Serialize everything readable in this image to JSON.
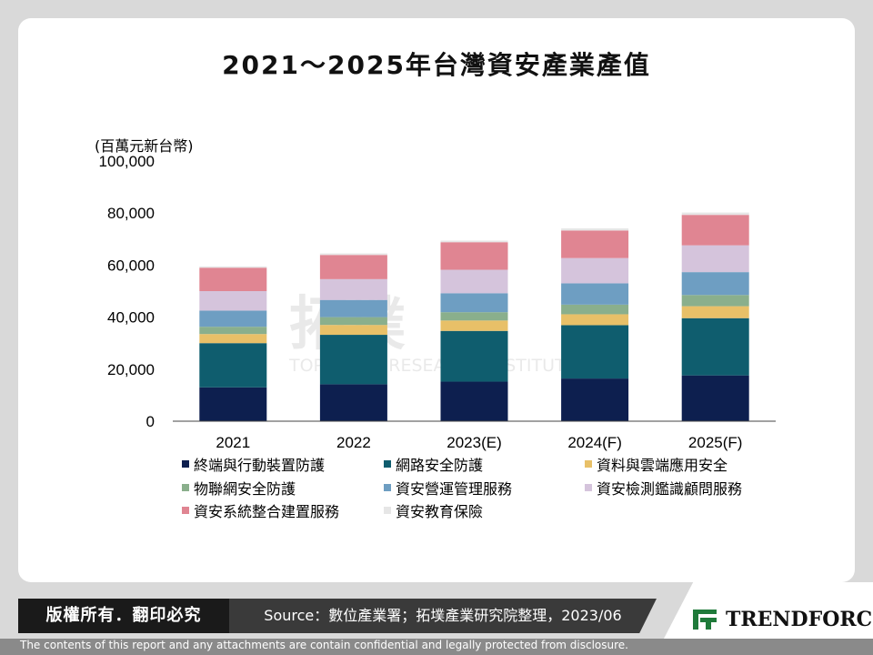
{
  "header": {
    "title": "2021～2025年台灣資安產業產值"
  },
  "chart_data": {
    "type": "bar",
    "stacked": true,
    "title": "2021～2025年台灣資安產業產值",
    "ylabel": "(百萬元新台幣)",
    "xlabel": "",
    "ylim": [
      0,
      100000
    ],
    "yticks": [
      "0",
      "20,000",
      "40,000",
      "60,000",
      "80,000",
      "100,000"
    ],
    "ytick_values": [
      0,
      20000,
      40000,
      60000,
      80000,
      100000
    ],
    "categories": [
      "2021",
      "2022",
      "2023(E)",
      "2024(F)",
      "2025(F)"
    ],
    "legend_position": "bottom",
    "grid": false,
    "series": [
      {
        "name": "終端與行動裝置防護",
        "color": "#0d1f4f",
        "values": [
          13000,
          14200,
          15200,
          16400,
          17600
        ]
      },
      {
        "name": "網路安全防護",
        "color": "#0f5d6e",
        "values": [
          17000,
          19000,
          19500,
          20500,
          22000
        ]
      },
      {
        "name": "資料與雲端應用安全",
        "color": "#e8c068",
        "values": [
          3500,
          3800,
          4000,
          4200,
          4600
        ]
      },
      {
        "name": "物聯網安全防護",
        "color": "#8aaf8c",
        "values": [
          2800,
          3000,
          3200,
          3700,
          4300
        ]
      },
      {
        "name": "資安營運管理服務",
        "color": "#6e9ec2",
        "values": [
          6200,
          6600,
          7300,
          8200,
          8800
        ]
      },
      {
        "name": "資安檢測鑑識顧問服務",
        "color": "#d5c4dc",
        "values": [
          7500,
          8000,
          9000,
          9700,
          10300
        ]
      },
      {
        "name": "資安系統整合建置服務",
        "color": "#e08592",
        "values": [
          9000,
          9300,
          10600,
          10600,
          11700
        ]
      },
      {
        "name": "資安教育保險",
        "color": "#e6e6e6",
        "values": [
          500,
          600,
          600,
          800,
          900
        ]
      }
    ]
  },
  "footer": {
    "copyright": "版權所有．翻印必究",
    "source": "Source：數位產業署；拓墣產業研究院整理，2023/06",
    "logo_text": "TRENDFORCE",
    "disclaimer": "The contents of this report and any attachments are contain confidential and legally protected from disclosure."
  },
  "watermark": {
    "line1": "拓墣",
    "line2": "TOPOLOGY RESEARCH INSTITUTE"
  }
}
